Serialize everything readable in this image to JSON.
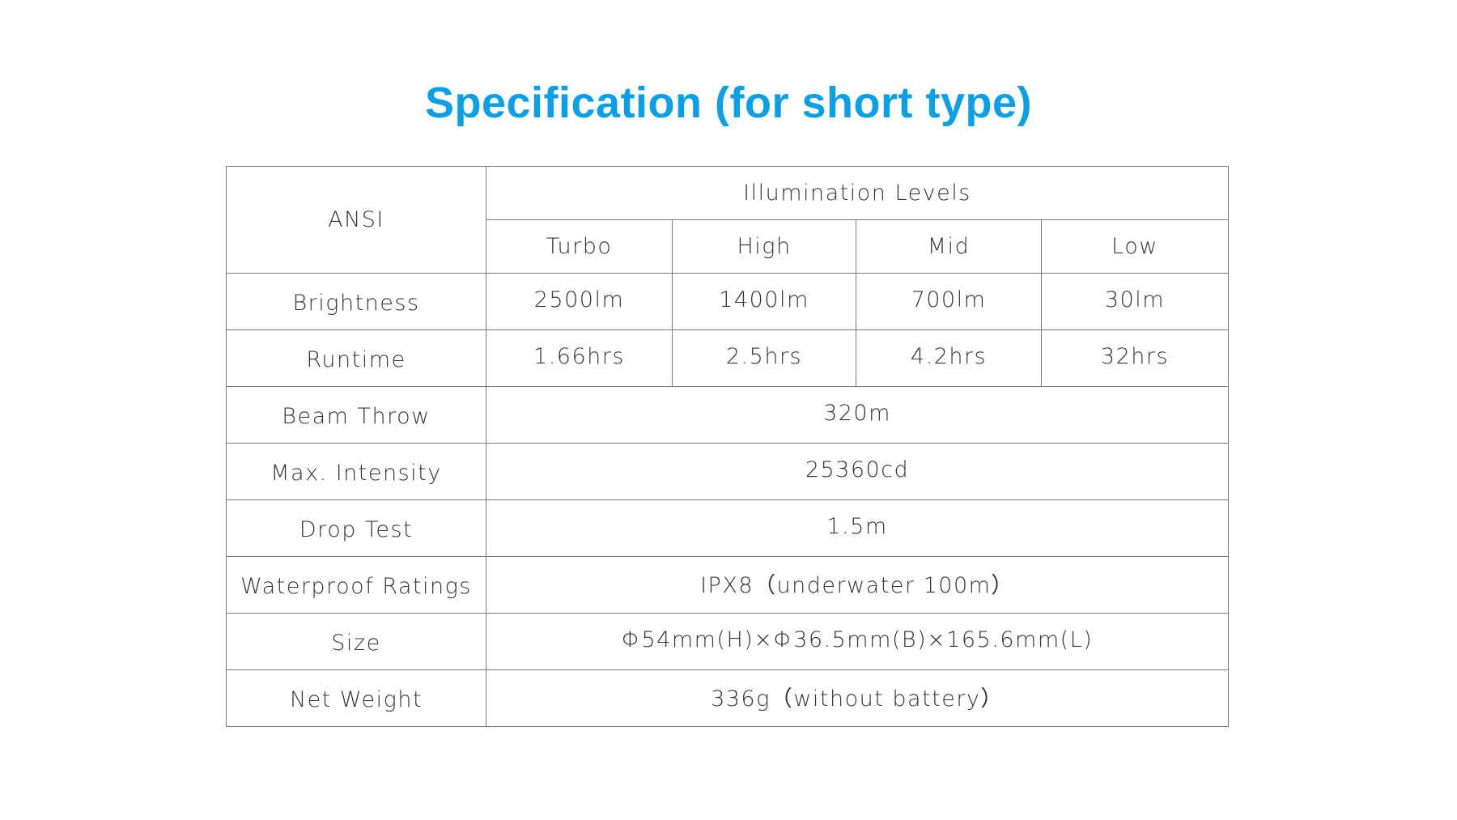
{
  "title": "Specification (for short type)",
  "colors": {
    "title": "#0a9fe6",
    "text": "#3a3434",
    "border": "#777777"
  },
  "table": {
    "corner_header": "ANSI",
    "group_header": "Illumination Levels",
    "modes": [
      "Turbo",
      "High",
      "Mid",
      "Low"
    ],
    "per_mode_rows": [
      {
        "label": "Brightness",
        "values": [
          "2500lm",
          "1400lm",
          "700lm",
          "30lm"
        ]
      },
      {
        "label": "Runtime",
        "values": [
          "1.66hrs",
          "2.5hrs",
          "4.2hrs",
          "32hrs"
        ]
      }
    ],
    "single_rows": [
      {
        "label": "Beam Throw",
        "value": "320m"
      },
      {
        "label": "Max. Intensity",
        "value": "25360cd"
      },
      {
        "label": "Drop Test",
        "value": "1.5m"
      },
      {
        "label": "Waterproof Ratings",
        "value": "IPX8（underwater 100m）"
      },
      {
        "label": "Size",
        "value": "Φ54mm(H)×Φ36.5mm(B)×165.6mm(L)"
      },
      {
        "label": "Net Weight",
        "value": "336g（without battery）"
      }
    ]
  }
}
